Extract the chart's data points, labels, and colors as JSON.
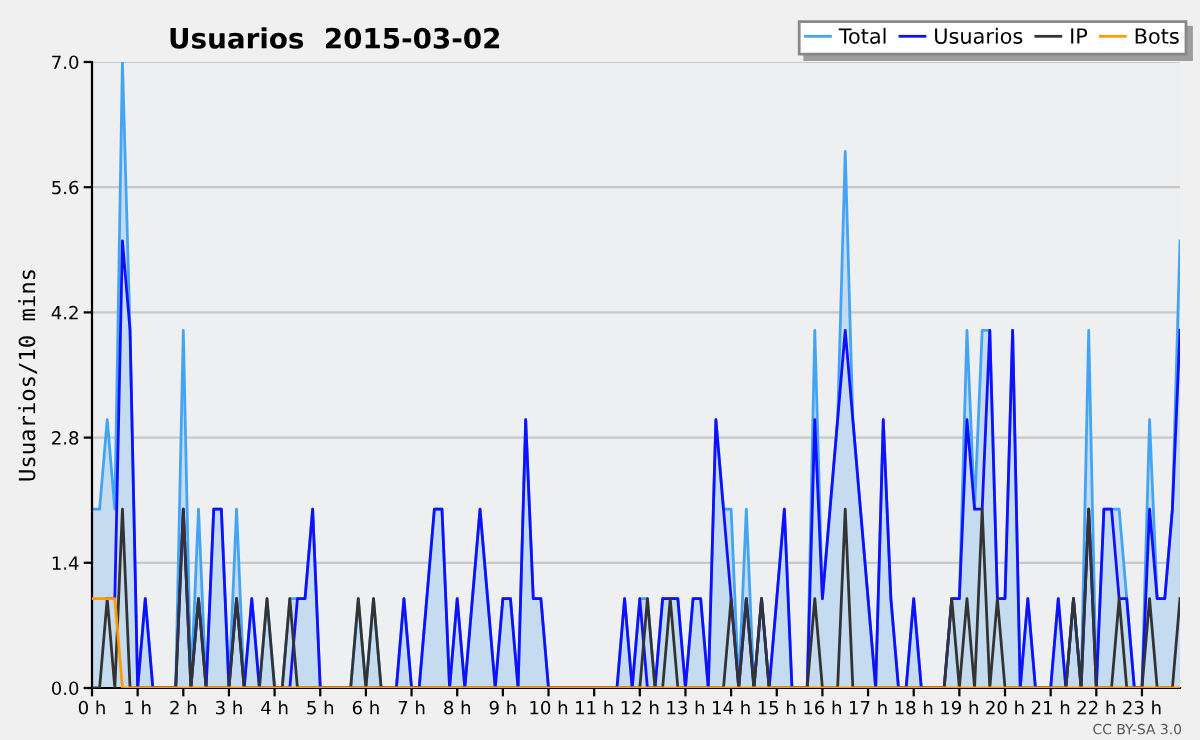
{
  "chart_data": {
    "type": "line",
    "title": "Usuarios  2015-03-02",
    "ylabel": "Usuarios/10 mins",
    "x": [
      0,
      0.1667,
      0.3333,
      0.5,
      0.6667,
      0.8333,
      1,
      1.1667,
      1.3333,
      1.5,
      1.6667,
      1.8333,
      2,
      2.1667,
      2.3333,
      2.5,
      2.6667,
      2.8333,
      3,
      3.1667,
      3.3333,
      3.5,
      3.6667,
      3.8333,
      4,
      4.1667,
      4.3333,
      4.5,
      4.6667,
      4.8333,
      5,
      5.1667,
      5.3333,
      5.5,
      5.6667,
      5.8333,
      6,
      6.1667,
      6.3333,
      6.5,
      6.6667,
      6.8333,
      7,
      7.1667,
      7.3333,
      7.5,
      7.6667,
      7.8333,
      8,
      8.1667,
      8.3333,
      8.5,
      8.6667,
      8.8333,
      9,
      9.1667,
      9.3333,
      9.5,
      9.6667,
      9.8333,
      10,
      10.1667,
      10.3333,
      10.5,
      10.6667,
      10.8333,
      11,
      11.1667,
      11.3333,
      11.5,
      11.6667,
      11.8333,
      12,
      12.1667,
      12.3333,
      12.5,
      12.6667,
      12.8333,
      13,
      13.1667,
      13.3333,
      13.5,
      13.6667,
      13.8333,
      14,
      14.1667,
      14.3333,
      14.5,
      14.6667,
      14.8333,
      15,
      15.1667,
      15.3333,
      15.5,
      15.6667,
      15.8333,
      16,
      16.1667,
      16.3333,
      16.5,
      16.6667,
      16.8333,
      17,
      17.1667,
      17.3333,
      17.5,
      17.6667,
      17.8333,
      18,
      18.1667,
      18.3333,
      18.5,
      18.6667,
      18.8333,
      19,
      19.1667,
      19.3333,
      19.5,
      19.6667,
      19.8333,
      20,
      20.1667,
      20.3333,
      20.5,
      20.6667,
      20.8333,
      21,
      21.1667,
      21.3333,
      21.5,
      21.6667,
      21.8333,
      22,
      22.1667,
      22.3333,
      22.5,
      22.6667,
      22.8333,
      23,
      23.1667,
      23.3333,
      23.5,
      23.6667,
      23.8333
    ],
    "series": [
      {
        "name": "Total",
        "type": "area",
        "color": "#44a4f4",
        "values": [
          2,
          2,
          3,
          2,
          7,
          4,
          0,
          1,
          0,
          0,
          0,
          0,
          4,
          0,
          2,
          0,
          2,
          2,
          0,
          2,
          0,
          1,
          0,
          1,
          0,
          0,
          1,
          1,
          1,
          2,
          0,
          0,
          0,
          0,
          0,
          1,
          0,
          1,
          0,
          0,
          0,
          1,
          0,
          0,
          1,
          2,
          2,
          0,
          1,
          0,
          1,
          2,
          1,
          0,
          1,
          1,
          0,
          3,
          1,
          1,
          0,
          0,
          0,
          0,
          0,
          0,
          0,
          0,
          0,
          0,
          1,
          0,
          1,
          1,
          0,
          1,
          1,
          1,
          0,
          1,
          1,
          0,
          3,
          2,
          2,
          0,
          2,
          0,
          1,
          0,
          1,
          2,
          0,
          0,
          0,
          4,
          1,
          2,
          3,
          6,
          3,
          2,
          1,
          0,
          3,
          1,
          0,
          0,
          1,
          0,
          0,
          0,
          0,
          1,
          1,
          4,
          2,
          4,
          4,
          1,
          1,
          4,
          0,
          1,
          0,
          0,
          0,
          1,
          0,
          1,
          0,
          4,
          0,
          2,
          2,
          2,
          1,
          0,
          0,
          3,
          1,
          1,
          2,
          5
        ]
      },
      {
        "name": "Usuarios",
        "color": "#1010ff",
        "values": [
          null,
          null,
          1,
          1,
          5,
          4,
          0,
          1,
          0,
          0,
          0,
          0,
          2,
          0,
          1,
          0,
          2,
          2,
          0,
          1,
          0,
          1,
          0,
          0,
          0,
          0,
          0,
          1,
          1,
          2,
          0,
          0,
          0,
          0,
          0,
          0,
          0,
          0,
          0,
          0,
          0,
          1,
          0,
          0,
          1,
          2,
          2,
          0,
          1,
          0,
          1,
          2,
          1,
          0,
          1,
          1,
          0,
          3,
          1,
          1,
          0,
          0,
          0,
          0,
          0,
          0,
          0,
          0,
          0,
          0,
          1,
          0,
          1,
          0,
          0,
          1,
          1,
          1,
          0,
          1,
          1,
          0,
          3,
          2,
          1,
          0,
          1,
          0,
          1,
          0,
          1,
          2,
          0,
          0,
          0,
          3,
          1,
          2,
          3,
          4,
          3,
          2,
          1,
          0,
          3,
          1,
          0,
          0,
          1,
          0,
          0,
          0,
          0,
          1,
          1,
          3,
          2,
          2,
          4,
          1,
          1,
          4,
          0,
          1,
          0,
          0,
          0,
          1,
          0,
          1,
          0,
          2,
          0,
          2,
          2,
          1,
          1,
          0,
          0,
          2,
          1,
          1,
          2,
          4
        ]
      },
      {
        "name": "IP",
        "color": "#333333",
        "values": [
          0,
          0,
          1,
          0,
          2,
          0,
          0,
          0,
          0,
          0,
          0,
          0,
          2,
          0,
          1,
          0,
          0,
          0,
          0,
          1,
          0,
          0,
          0,
          1,
          0,
          0,
          1,
          0,
          0,
          0,
          0,
          0,
          0,
          0,
          0,
          1,
          0,
          1,
          0,
          0,
          0,
          0,
          0,
          0,
          0,
          0,
          0,
          0,
          0,
          0,
          0,
          0,
          0,
          0,
          0,
          0,
          0,
          0,
          0,
          0,
          0,
          0,
          0,
          0,
          0,
          0,
          0,
          0,
          0,
          0,
          0,
          0,
          0,
          1,
          0,
          0,
          1,
          0,
          0,
          0,
          0,
          0,
          0,
          0,
          1,
          0,
          1,
          0,
          1,
          0,
          0,
          0,
          0,
          0,
          0,
          1,
          0,
          0,
          0,
          2,
          0,
          0,
          0,
          0,
          0,
          0,
          0,
          0,
          0,
          0,
          0,
          0,
          0,
          1,
          0,
          1,
          0,
          2,
          0,
          1,
          0,
          0,
          0,
          0,
          0,
          0,
          0,
          0,
          0,
          1,
          0,
          2,
          0,
          0,
          0,
          1,
          0,
          0,
          0,
          1,
          0,
          0,
          0,
          1
        ]
      },
      {
        "name": "Bots",
        "color": "#ff9a00",
        "values": [
          1,
          1,
          1,
          1,
          0,
          0,
          0,
          0,
          0,
          0,
          0,
          0,
          0,
          0,
          0,
          0,
          0,
          0,
          0,
          0,
          0,
          0,
          0,
          0,
          0,
          0,
          0,
          0,
          0,
          0,
          0,
          0,
          0,
          0,
          0,
          0,
          0,
          0,
          0,
          0,
          0,
          0,
          0,
          0,
          0,
          0,
          0,
          0,
          0,
          0,
          0,
          0,
          0,
          0,
          0,
          0,
          0,
          0,
          0,
          0,
          0,
          0,
          0,
          0,
          0,
          0,
          0,
          0,
          0,
          0,
          0,
          0,
          0,
          0,
          0,
          0,
          0,
          0,
          0,
          0,
          0,
          0,
          0,
          0,
          0,
          0,
          0,
          0,
          0,
          0,
          0,
          0,
          0,
          0,
          0,
          0,
          0,
          0,
          0,
          0,
          0,
          0,
          0,
          0,
          0,
          0,
          0,
          0,
          0,
          0,
          0,
          0,
          0,
          0,
          0,
          0,
          0,
          0,
          0,
          0,
          0,
          0,
          0,
          0,
          0,
          0,
          0,
          0,
          0,
          0,
          0,
          0,
          0,
          0,
          0,
          0,
          0,
          0,
          0,
          0,
          0,
          0,
          0,
          0
        ]
      }
    ],
    "xlim": [
      0,
      23.8333
    ],
    "xticks": [
      {
        "value": 0,
        "label": "0 h"
      },
      {
        "value": 1,
        "label": "1 h"
      },
      {
        "value": 2,
        "label": "2 h"
      },
      {
        "value": 3,
        "label": "3 h"
      },
      {
        "value": 4,
        "label": "4 h"
      },
      {
        "value": 5,
        "label": "5 h"
      },
      {
        "value": 6,
        "label": "6 h"
      },
      {
        "value": 7,
        "label": "7 h"
      },
      {
        "value": 8,
        "label": "8 h"
      },
      {
        "value": 9,
        "label": "9 h"
      },
      {
        "value": 10,
        "label": "10 h"
      },
      {
        "value": 11,
        "label": "11 h"
      },
      {
        "value": 12,
        "label": "12 h"
      },
      {
        "value": 13,
        "label": "13 h"
      },
      {
        "value": 14,
        "label": "14 h"
      },
      {
        "value": 15,
        "label": "15 h"
      },
      {
        "value": 16,
        "label": "16 h"
      },
      {
        "value": 17,
        "label": "17 h"
      },
      {
        "value": 18,
        "label": "18 h"
      },
      {
        "value": 19,
        "label": "19 h"
      },
      {
        "value": 20,
        "label": "20 h"
      },
      {
        "value": 21,
        "label": "21 h"
      },
      {
        "value": 22,
        "label": "22 h"
      },
      {
        "value": 23,
        "label": "23 h"
      }
    ],
    "ylim": [
      0,
      7
    ],
    "yticks": [
      {
        "value": 0,
        "label": "0.0"
      },
      {
        "value": 1.4,
        "label": "1.4"
      },
      {
        "value": 2.8,
        "label": "2.8"
      },
      {
        "value": 4.2,
        "label": "4.2"
      },
      {
        "value": 5.6,
        "label": "5.6"
      },
      {
        "value": 7,
        "label": "7.0"
      }
    ],
    "grid": "y",
    "legend": "top right",
    "marker": "none",
    "line_style": "solid",
    "annotations": [
      "CC BY-SA 3.0"
    ]
  }
}
